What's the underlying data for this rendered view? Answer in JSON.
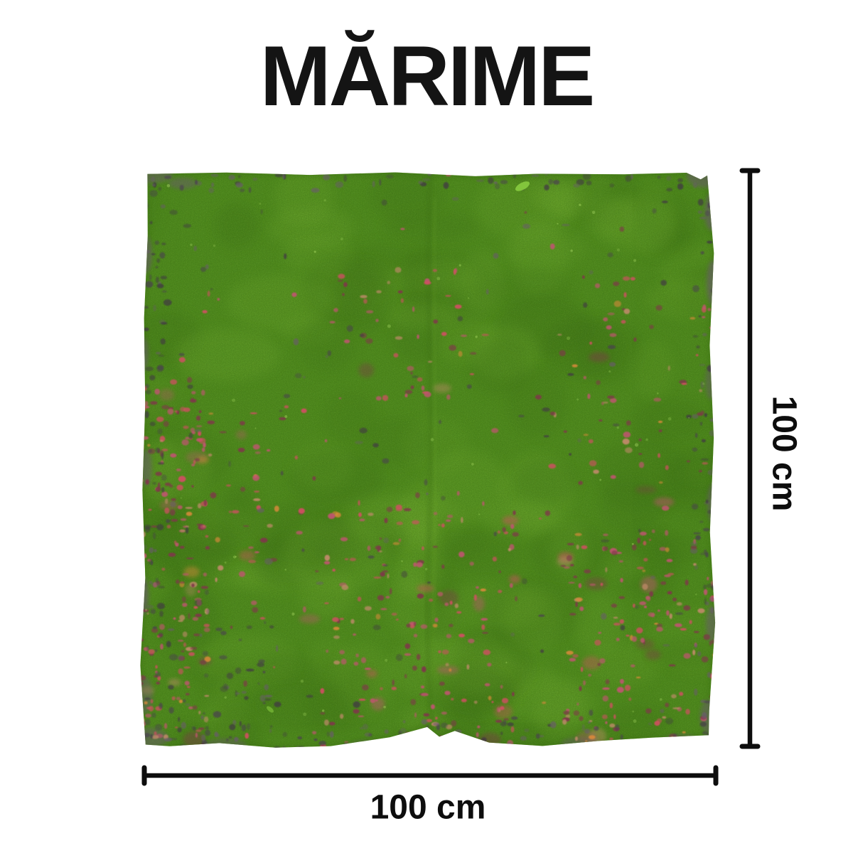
{
  "title": "MĂRIME",
  "dimensions": {
    "height_label": "100 cm",
    "width_label": "100 cm"
  },
  "colors": {
    "background": "#ffffff",
    "text": "#141414",
    "dimension_line": "#0d0d0d",
    "mat_base_green": "#4f8a1f",
    "mat_dark_green": "#3a6c13",
    "mat_light_green": "#72ab31",
    "mat_grain_dark": "#2e5a0e",
    "mat_grain_light": "#a3d45e",
    "patch_pink": "#c05570",
    "patch_deep_pink": "#d04f62",
    "patch_maroon": "#7e3848",
    "patch_tan": "#c08a6a",
    "patch_orange": "#d8893a",
    "speck_purple": "#4a3a52",
    "speck_purple_light": "#6b5a6e",
    "leaf_green": "#85c83e"
  }
}
